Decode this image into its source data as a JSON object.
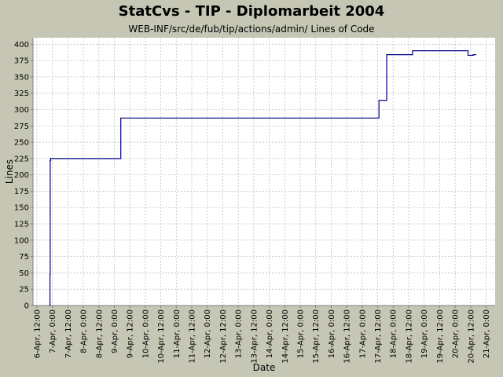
{
  "chart_data": {
    "type": "line",
    "title": "StatCvs - TIP - Diplomarbeit 2004",
    "subtitle": "WEB-INF/src/de/fub/tip/actions/admin/ Lines of Code",
    "xlabel": "Date",
    "ylabel": "Lines",
    "x_tick_labels": [
      "6-Apr, 12:00",
      "7-Apr, 0:00",
      "7-Apr, 12:00",
      "8-Apr, 0:00",
      "8-Apr, 12:00",
      "9-Apr, 0:00",
      "9-Apr, 12:00",
      "10-Apr, 0:00",
      "10-Apr, 12:00",
      "11-Apr, 0:00",
      "11-Apr, 12:00",
      "12-Apr, 0:00",
      "12-Apr, 12:00",
      "13-Apr, 0:00",
      "13-Apr, 12:00",
      "14-Apr, 0:00",
      "14-Apr, 12:00",
      "15-Apr, 0:00",
      "15-Apr, 12:00",
      "16-Apr, 0:00",
      "16-Apr, 12:00",
      "17-Apr, 0:00",
      "17-Apr, 12:00",
      "18-Apr, 0:00",
      "18-Apr, 12:00",
      "19-Apr, 0:00",
      "19-Apr, 12:00",
      "20-Apr, 0:00",
      "20-Apr, 12:00",
      "21-Apr, 0:00"
    ],
    "y_ticks": [
      0,
      25,
      50,
      75,
      100,
      125,
      150,
      175,
      200,
      225,
      250,
      275,
      300,
      325,
      350,
      375,
      400
    ],
    "ylim": [
      0,
      410
    ],
    "xlim": [
      "2004-04-06 09:00",
      "2004-04-21 07:00"
    ],
    "grid": true,
    "legend": "none",
    "line_color": "#000080",
    "step": true,
    "series": [
      {
        "x": [
          "2004-04-06 22:00",
          "2004-04-06 22:10",
          "2004-04-06 22:20",
          "2004-04-06 22:40",
          "2004-04-09 05:00",
          "2004-04-17 13:00",
          "2004-04-17 19:00",
          "2004-04-18 15:00",
          "2004-04-20 10:00",
          "2004-04-20 14:00"
        ],
        "y": [
          0,
          48,
          222,
          225,
          287,
          314,
          384,
          390,
          383,
          384
        ]
      }
    ]
  }
}
